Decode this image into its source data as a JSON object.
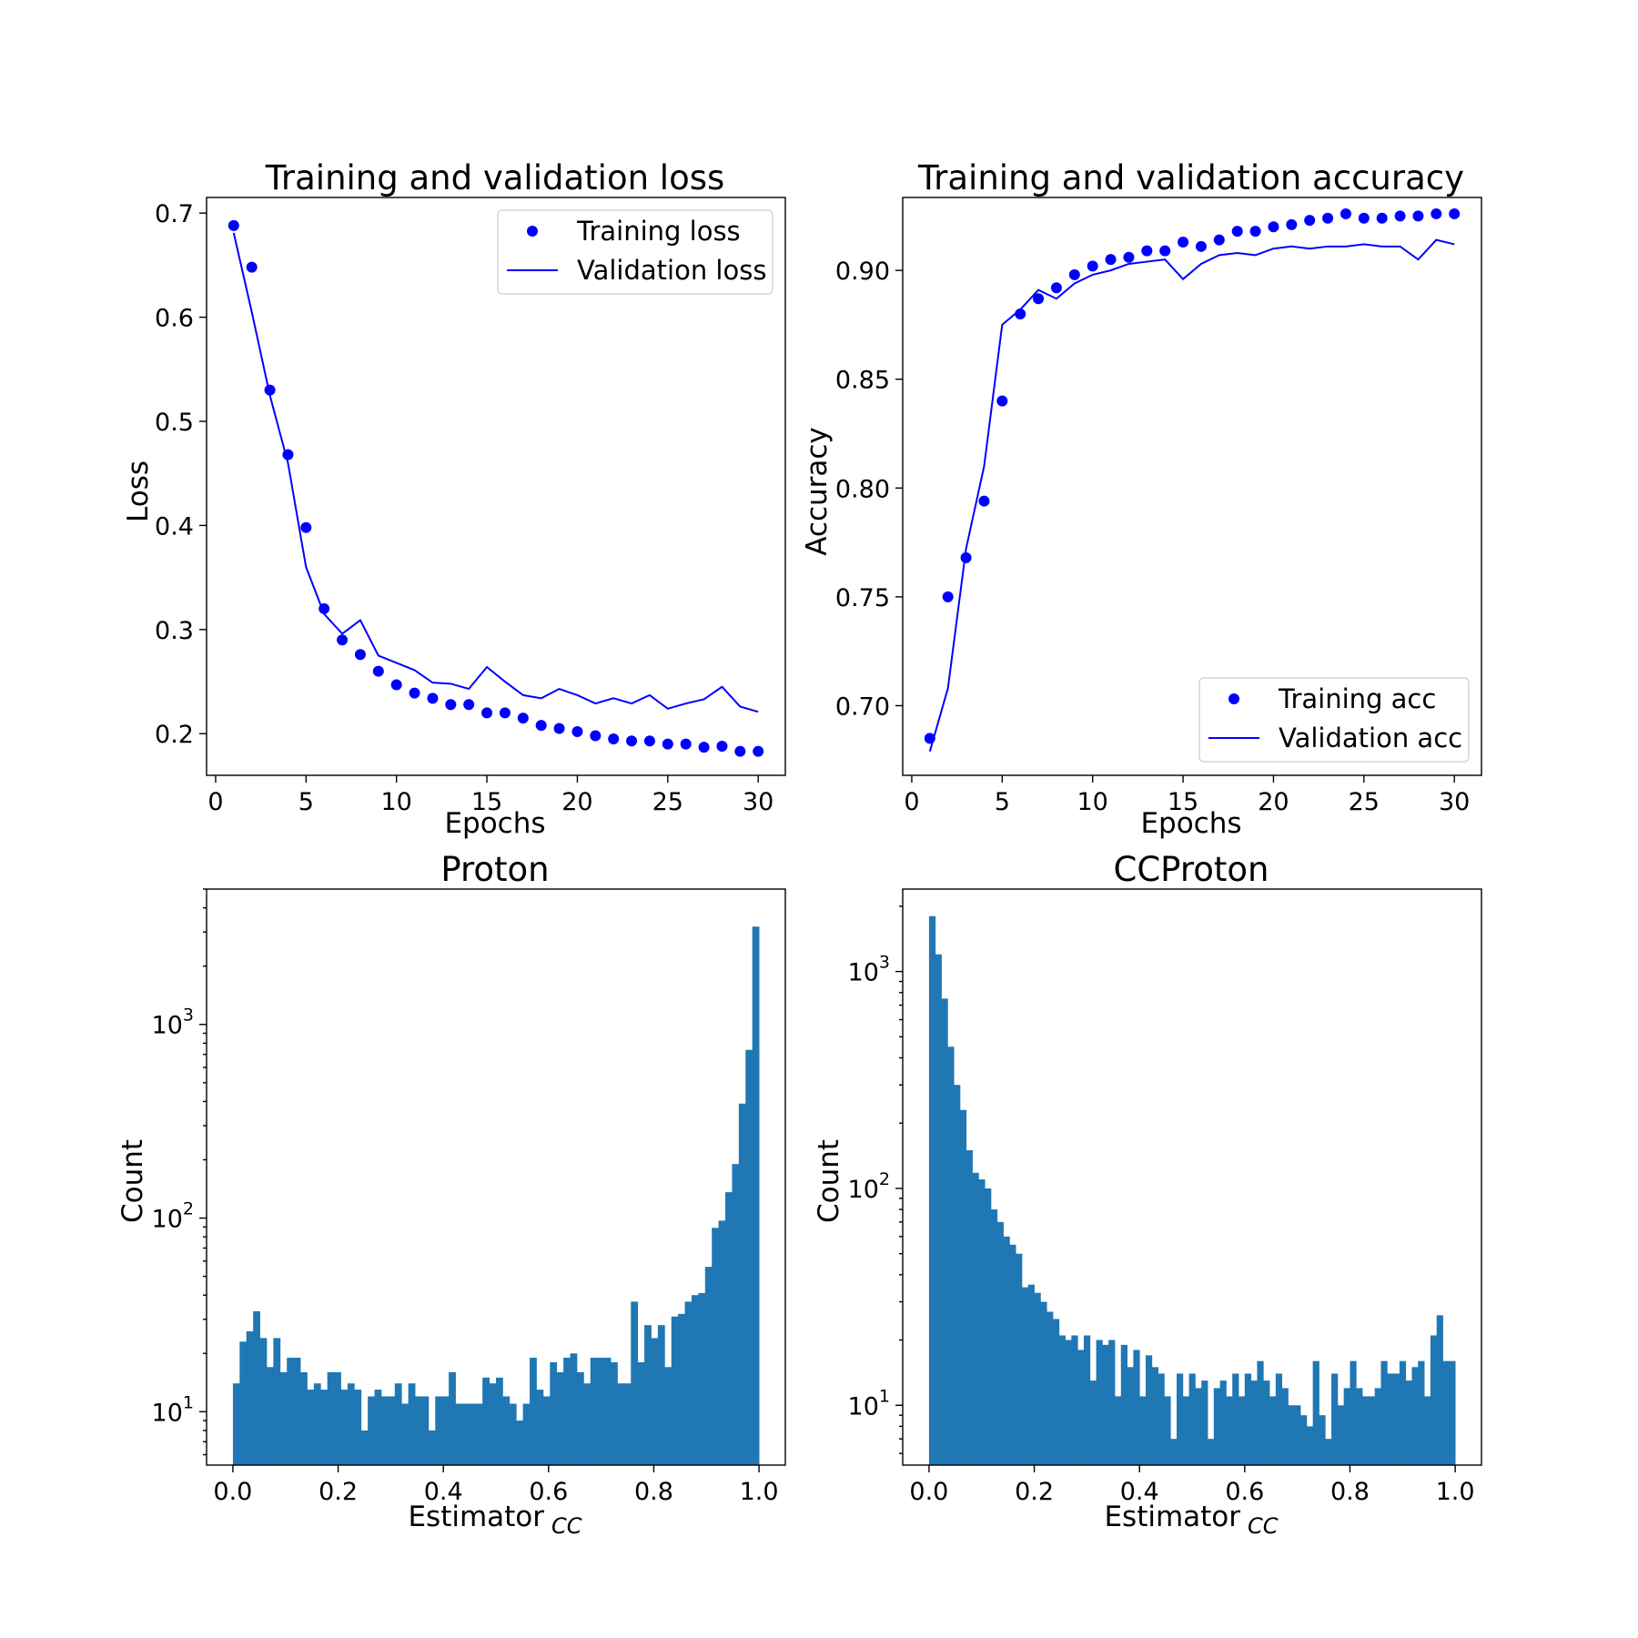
{
  "chart_data": [
    {
      "type": "line",
      "title": "Training and validation loss",
      "xlabel": "Epochs",
      "ylabel": "Loss",
      "xlim": [
        -0.5,
        31.5
      ],
      "ylim": [
        0.16,
        0.715
      ],
      "xticks": [
        0,
        5,
        10,
        15,
        20,
        25,
        30
      ],
      "yticks": [
        0.2,
        0.3,
        0.4,
        0.5,
        0.6,
        0.7
      ],
      "legend": "top-right",
      "grid": false,
      "x": [
        1,
        2,
        3,
        4,
        5,
        6,
        7,
        8,
        9,
        10,
        11,
        12,
        13,
        14,
        15,
        16,
        17,
        18,
        19,
        20,
        21,
        22,
        23,
        24,
        25,
        26,
        27,
        28,
        29,
        30
      ],
      "series": [
        {
          "name": "Training loss",
          "style": "points",
          "color": "#0000ff",
          "values": [
            0.688,
            0.648,
            0.53,
            0.468,
            0.398,
            0.32,
            0.29,
            0.276,
            0.26,
            0.247,
            0.239,
            0.234,
            0.228,
            0.228,
            0.22,
            0.22,
            0.215,
            0.208,
            0.205,
            0.202,
            0.198,
            0.195,
            0.193,
            0.193,
            0.19,
            0.19,
            0.187,
            0.188,
            0.183,
            0.183
          ]
        },
        {
          "name": "Validation loss",
          "style": "line",
          "color": "#0000ff",
          "values": [
            0.681,
            0.605,
            0.525,
            0.46,
            0.36,
            0.315,
            0.296,
            0.309,
            0.275,
            0.268,
            0.261,
            0.249,
            0.248,
            0.243,
            0.264,
            0.25,
            0.237,
            0.234,
            0.243,
            0.237,
            0.229,
            0.234,
            0.229,
            0.237,
            0.224,
            0.229,
            0.233,
            0.245,
            0.226,
            0.221
          ]
        }
      ]
    },
    {
      "type": "line",
      "title": "Training and validation accuracy",
      "xlabel": "Epochs",
      "ylabel": "Accuracy",
      "xlim": [
        -0.5,
        31.5
      ],
      "ylim": [
        0.668,
        0.9335
      ],
      "xticks": [
        0,
        5,
        10,
        15,
        20,
        25,
        30
      ],
      "yticks": [
        0.7,
        0.75,
        0.8,
        0.85,
        0.9
      ],
      "legend": "bottom-right",
      "grid": false,
      "x": [
        1,
        2,
        3,
        4,
        5,
        6,
        7,
        8,
        9,
        10,
        11,
        12,
        13,
        14,
        15,
        16,
        17,
        18,
        19,
        20,
        21,
        22,
        23,
        24,
        25,
        26,
        27,
        28,
        29,
        30
      ],
      "series": [
        {
          "name": "Training acc",
          "style": "points",
          "color": "#0000ff",
          "values": [
            0.685,
            0.75,
            0.768,
            0.794,
            0.84,
            0.88,
            0.887,
            0.892,
            0.898,
            0.902,
            0.905,
            0.906,
            0.909,
            0.909,
            0.913,
            0.911,
            0.914,
            0.918,
            0.918,
            0.92,
            0.921,
            0.923,
            0.924,
            0.926,
            0.924,
            0.924,
            0.925,
            0.925,
            0.926,
            0.926
          ]
        },
        {
          "name": "Validation acc",
          "style": "line",
          "color": "#0000ff",
          "values": [
            0.679,
            0.708,
            0.772,
            0.81,
            0.875,
            0.882,
            0.891,
            0.887,
            0.894,
            0.898,
            0.9,
            0.903,
            0.904,
            0.905,
            0.896,
            0.903,
            0.907,
            0.908,
            0.907,
            0.91,
            0.911,
            0.91,
            0.911,
            0.911,
            0.912,
            0.911,
            0.911,
            0.905,
            0.914,
            0.912
          ]
        }
      ]
    },
    {
      "type": "bar",
      "subtype": "histogram",
      "title": "Proton",
      "xlabel": "Estimator",
      "xlabel_sub": "CC",
      "ylabel": "Count",
      "yscale": "log",
      "xlim": [
        -0.05,
        1.05
      ],
      "ylim": [
        5.3,
        5000
      ],
      "xticks": [
        0.0,
        0.2,
        0.4,
        0.6,
        0.8,
        1.0
      ],
      "xticklabels": [
        "0.0",
        "0.2",
        "0.4",
        "0.6",
        "0.8",
        "1.0"
      ],
      "yticks": [
        10,
        100,
        1000
      ],
      "yticklabels": [
        [
          "10",
          "1"
        ],
        [
          "10",
          "2"
        ],
        [
          "10",
          "3"
        ]
      ],
      "color": "#1f77b4",
      "bin_range": [
        0,
        1
      ],
      "values": [
        14,
        23,
        26,
        33,
        24,
        17,
        24,
        16,
        19,
        19,
        16,
        13,
        14,
        13,
        16,
        16,
        13,
        14,
        13,
        8,
        12,
        13,
        12,
        12,
        14,
        11,
        14,
        12,
        12,
        8,
        12,
        12,
        16,
        11,
        11,
        11,
        11,
        15,
        14,
        15,
        12,
        11,
        9,
        11,
        19,
        13,
        12,
        18,
        16,
        19,
        20,
        16,
        14,
        19,
        19,
        19,
        18,
        14,
        14,
        37,
        18,
        28,
        24,
        28,
        17,
        31,
        32,
        37,
        40,
        41,
        56,
        89,
        97,
        136,
        190,
        390,
        739,
        3200
      ]
    },
    {
      "type": "bar",
      "subtype": "histogram",
      "title": "CCProton",
      "xlabel": "Estimator",
      "xlabel_sub": "CC",
      "ylabel": "Count",
      "yscale": "log",
      "xlim": [
        -0.05,
        1.05
      ],
      "ylim": [
        5.3,
        2400
      ],
      "xticks": [
        0.0,
        0.2,
        0.4,
        0.6,
        0.8,
        1.0
      ],
      "xticklabels": [
        "0.0",
        "0.2",
        "0.4",
        "0.6",
        "0.8",
        "1.0"
      ],
      "yticks": [
        10,
        100,
        1000
      ],
      "yticklabels": [
        [
          "10",
          "1"
        ],
        [
          "10",
          "2"
        ],
        [
          "10",
          "3"
        ]
      ],
      "color": "#1f77b4",
      "bin_range": [
        0,
        1
      ],
      "values": [
        1800,
        1200,
        750,
        450,
        300,
        230,
        150,
        118,
        110,
        100,
        80,
        70,
        60,
        55,
        50,
        35,
        36,
        33,
        30,
        27,
        25,
        21,
        20,
        21,
        18,
        21,
        13,
        20,
        19,
        20,
        11,
        19,
        15,
        18,
        11,
        17,
        15,
        14,
        11,
        7,
        14,
        11,
        14,
        12,
        13,
        7,
        12,
        13,
        11,
        14,
        11,
        14,
        13,
        16,
        13,
        11,
        14,
        12,
        10,
        10,
        9,
        8,
        16,
        9,
        7,
        14,
        10,
        12,
        16,
        12,
        11,
        11,
        12,
        16,
        14,
        14,
        16,
        13,
        15,
        16,
        11,
        21,
        26,
        16,
        16
      ]
    }
  ]
}
